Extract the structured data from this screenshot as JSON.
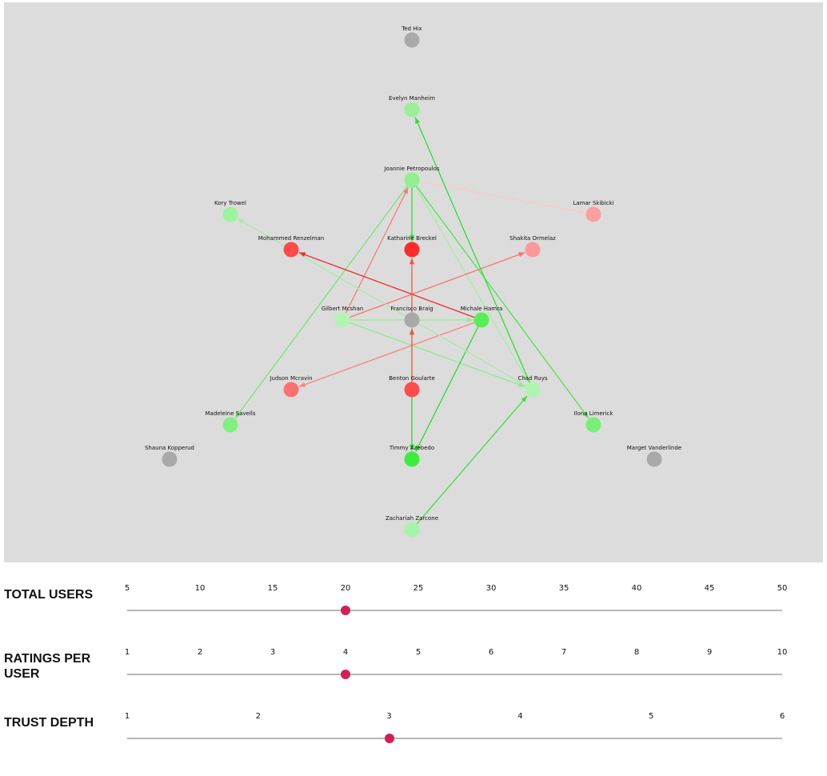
{
  "graph": {
    "nodes": [
      {
        "id": "ted",
        "label": "Ted Hix",
        "color": "#a9a9a9"
      },
      {
        "id": "evelyn",
        "label": "Evelyn Manheim",
        "color": "#99f099"
      },
      {
        "id": "joannie",
        "label": "Joannie Petropoulos",
        "color": "#8ef08e"
      },
      {
        "id": "lamar",
        "label": "Lamar Skibicki",
        "color": "#ff9e9e"
      },
      {
        "id": "kory",
        "label": "Kory Trowel",
        "color": "#9af59a"
      },
      {
        "id": "mohammed",
        "label": "Mohammed Renzelman",
        "color": "#ff4a4a"
      },
      {
        "id": "katharine",
        "label": "Katharine Breckel",
        "color": "#ff2b2b"
      },
      {
        "id": "shakita",
        "label": "Shakita Ormelaz",
        "color": "#ff9898"
      },
      {
        "id": "gilbert",
        "label": "Gilbert Mcshan",
        "color": "#b2f5b2"
      },
      {
        "id": "francisco",
        "label": "Francisco Braig",
        "color": "#a9a9a9"
      },
      {
        "id": "michale",
        "label": "Michale Hamra",
        "color": "#58ee58"
      },
      {
        "id": "judson",
        "label": "Judson Mcravin",
        "color": "#ff7070"
      },
      {
        "id": "benton",
        "label": "Benton Goularte",
        "color": "#ff4d4d"
      },
      {
        "id": "chad",
        "label": "Chad Ruys",
        "color": "#aef5ae"
      },
      {
        "id": "madeleine",
        "label": "Madeleine Savells",
        "color": "#80f080"
      },
      {
        "id": "ilona",
        "label": "Ilona Limerick",
        "color": "#78ef78"
      },
      {
        "id": "shauna",
        "label": "Shauna Kopperud",
        "color": "#a9a9a9"
      },
      {
        "id": "timmy",
        "label": "Timmy Azebedo",
        "color": "#3ded3d"
      },
      {
        "id": "marget",
        "label": "Marget Vanderlinde",
        "color": "#a9a9a9"
      },
      {
        "id": "zachariah",
        "label": "Zachariah Zarcone",
        "color": "#a6f5a6"
      }
    ],
    "edges": [
      {
        "from": "joannie",
        "to": "katharine",
        "color": "#2ee02e"
      },
      {
        "from": "joannie",
        "to": "lamar",
        "color": "#ffc8c8"
      },
      {
        "from": "joannie",
        "to": "madeleine",
        "color": "#6fe96f"
      },
      {
        "from": "joannie",
        "to": "ilona",
        "color": "#4fe34f"
      },
      {
        "from": "joannie",
        "to": "chad",
        "color": "#9ff09f"
      },
      {
        "from": "gilbert",
        "to": "joannie",
        "color": "#ff7878"
      },
      {
        "from": "gilbert",
        "to": "shakita",
        "color": "#ff6f6f"
      },
      {
        "from": "gilbert",
        "to": "michale",
        "color": "#8aee8a"
      },
      {
        "from": "gilbert",
        "to": "chad",
        "color": "#8aee8a"
      },
      {
        "from": "michale",
        "to": "mohammed",
        "color": "#f02a2a"
      },
      {
        "from": "michale",
        "to": "judson",
        "color": "#ff8080"
      },
      {
        "from": "michale",
        "to": "timmy",
        "color": "#29dd29"
      },
      {
        "from": "francisco",
        "to": "katharine",
        "color": "#ee5a3a"
      },
      {
        "from": "benton",
        "to": "francisco",
        "color": "#e8582e"
      },
      {
        "from": "benton",
        "to": "timmy",
        "color": "#29d829"
      },
      {
        "from": "chad",
        "to": "evelyn",
        "color": "#2fde2f"
      },
      {
        "from": "chad",
        "to": "kory",
        "color": "#a6eaa6"
      },
      {
        "from": "zachariah",
        "to": "chad",
        "color": "#3de03d"
      }
    ]
  },
  "controls": [
    {
      "label": "TOTAL USERS",
      "ticks": [
        "5",
        "10",
        "15",
        "20",
        "25",
        "30",
        "35",
        "40",
        "45",
        "50"
      ],
      "value": 20,
      "min": 5,
      "max": 50
    },
    {
      "label": "RATINGS PER USER",
      "ticks": [
        "1",
        "2",
        "3",
        "4",
        "5",
        "6",
        "7",
        "8",
        "9",
        "10"
      ],
      "value": 4,
      "min": 1,
      "max": 10
    },
    {
      "label": "TRUST DEPTH",
      "ticks": [
        "1",
        "2",
        "3",
        "4",
        "5",
        "6"
      ],
      "value": 3,
      "min": 1,
      "max": 6
    }
  ]
}
